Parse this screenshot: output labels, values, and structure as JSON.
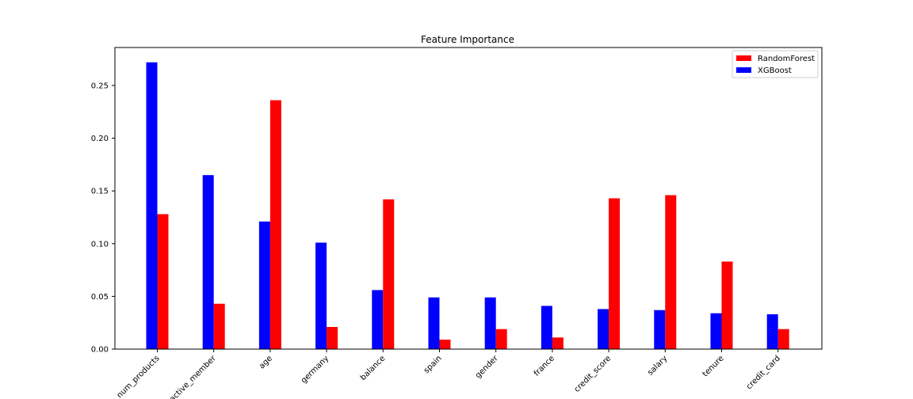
{
  "chart_data": {
    "type": "bar",
    "title": "Feature Importance",
    "xlabel": "",
    "ylabel": "",
    "categories": [
      "num_products",
      "active_member",
      "age",
      "germany",
      "balance",
      "spain",
      "gender",
      "france",
      "credit_score",
      "salary",
      "tenure",
      "credit_card"
    ],
    "series": [
      {
        "name": "XGBoost",
        "color": "#0000ff",
        "values": [
          0.272,
          0.165,
          0.121,
          0.101,
          0.056,
          0.049,
          0.049,
          0.041,
          0.038,
          0.037,
          0.034,
          0.033
        ]
      },
      {
        "name": "RandomForest",
        "color": "#ff0000",
        "values": [
          0.128,
          0.043,
          0.236,
          0.021,
          0.142,
          0.009,
          0.019,
          0.011,
          0.143,
          0.146,
          0.083,
          0.019
        ]
      }
    ],
    "legend_order": [
      "RandomForest",
      "XGBoost"
    ],
    "legend_position": "top-right",
    "ylim": [
      0,
      0.286
    ],
    "yticks": [
      "0.00",
      "0.05",
      "0.10",
      "0.15",
      "0.20",
      "0.25"
    ],
    "grid": false
  }
}
